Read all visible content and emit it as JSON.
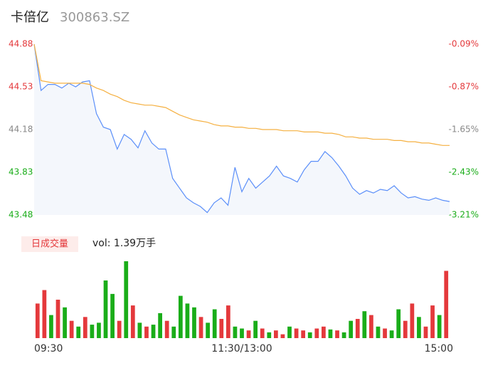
{
  "header": {
    "name": "卡倍亿",
    "code": "300863.SZ"
  },
  "chart_data": [
    {
      "type": "line",
      "grid": false,
      "x": [
        0,
        4,
        8,
        12,
        16,
        20,
        24,
        28,
        32,
        36,
        40,
        44,
        48,
        52,
        56,
        60,
        64,
        68,
        72,
        76,
        80,
        84,
        88,
        92,
        96,
        100,
        104,
        108,
        112,
        116,
        120,
        124,
        128,
        132,
        136,
        140,
        144,
        148,
        152,
        156,
        160,
        164,
        168,
        172,
        176,
        180,
        184,
        188,
        192,
        196,
        200,
        204,
        208,
        212,
        216,
        220,
        224,
        228,
        232,
        236,
        240
      ],
      "xlim": [
        0,
        240
      ],
      "ylim": [
        43.48,
        44.88
      ],
      "yticks": [
        43.48,
        43.83,
        44.18,
        44.53,
        44.88
      ],
      "y2lim": [
        -3.21,
        -0.09
      ],
      "y2ticks": [
        {
          "value": -3.21,
          "label": "-3.21%"
        },
        {
          "value": -2.43,
          "label": "-2.43%"
        },
        {
          "value": -1.65,
          "label": "-1.65%"
        },
        {
          "value": -0.87,
          "label": "-0.87%"
        },
        {
          "value": -0.09,
          "label": "-0.09%"
        }
      ],
      "tick_colors": [
        "#1aad19",
        "#1aad19",
        "#888888",
        "#e4393c",
        "#e4393c"
      ],
      "series": [
        {
          "color": "#5b8ff9",
          "values": [
            44.88,
            44.5,
            44.55,
            44.55,
            44.52,
            44.56,
            44.53,
            44.57,
            44.58,
            44.31,
            44.2,
            44.18,
            44.02,
            44.14,
            44.1,
            44.03,
            44.17,
            44.07,
            44.02,
            44.02,
            43.78,
            43.7,
            43.62,
            43.58,
            43.55,
            43.5,
            43.58,
            43.62,
            43.56,
            43.87,
            43.67,
            43.78,
            43.7,
            43.75,
            43.8,
            43.88,
            43.8,
            43.78,
            43.75,
            43.85,
            43.92,
            43.92,
            44.0,
            43.95,
            43.88,
            43.8,
            43.7,
            43.65,
            43.68,
            43.66,
            43.69,
            43.68,
            43.72,
            43.66,
            43.62,
            43.63,
            43.61,
            43.6,
            43.62,
            43.6,
            43.59
          ]
        },
        {
          "color": "#f5b041",
          "values": [
            44.88,
            44.58,
            44.57,
            44.56,
            44.56,
            44.56,
            44.56,
            44.56,
            44.55,
            44.52,
            44.5,
            44.47,
            44.45,
            44.42,
            44.4,
            44.39,
            44.38,
            44.38,
            44.37,
            44.36,
            44.33,
            44.3,
            44.28,
            44.26,
            44.25,
            44.24,
            44.22,
            44.21,
            44.21,
            44.2,
            44.2,
            44.19,
            44.19,
            44.18,
            44.18,
            44.18,
            44.17,
            44.17,
            44.17,
            44.16,
            44.16,
            44.16,
            44.15,
            44.15,
            44.14,
            44.12,
            44.12,
            44.11,
            44.11,
            44.1,
            44.1,
            44.1,
            44.09,
            44.09,
            44.08,
            44.08,
            44.07,
            44.07,
            44.06,
            44.05,
            44.05
          ]
        }
      ]
    },
    {
      "type": "volume",
      "label": "日成交量",
      "summary": "vol: 1.39万手",
      "xlim": [
        0,
        240
      ],
      "ylim": [
        0,
        400
      ],
      "xticks": [
        {
          "value": 0,
          "label": "09:30"
        },
        {
          "value": 120,
          "label": "11:30/13:00"
        },
        {
          "value": 240,
          "label": "15:00"
        }
      ],
      "values": [
        180,
        250,
        120,
        200,
        160,
        90,
        60,
        110,
        70,
        80,
        300,
        230,
        90,
        400,
        170,
        80,
        60,
        70,
        130,
        90,
        60,
        220,
        180,
        160,
        110,
        80,
        150,
        100,
        170,
        60,
        50,
        40,
        90,
        50,
        30,
        40,
        20,
        60,
        50,
        40,
        30,
        50,
        60,
        45,
        40,
        30,
        90,
        100,
        140,
        120,
        60,
        50,
        40,
        150,
        90,
        180,
        110,
        60,
        170,
        120,
        350
      ],
      "colors": [
        "#e4393c",
        "#e4393c",
        "#1aad19",
        "#e4393c",
        "#1aad19",
        "#e4393c",
        "#1aad19",
        "#e4393c",
        "#1aad19",
        "#1aad19",
        "#1aad19",
        "#1aad19",
        "#e4393c",
        "#1aad19",
        "#e4393c",
        "#1aad19",
        "#e4393c",
        "#1aad19",
        "#1aad19",
        "#e4393c",
        "#1aad19",
        "#1aad19",
        "#1aad19",
        "#1aad19",
        "#e4393c",
        "#1aad19",
        "#1aad19",
        "#e4393c",
        "#e4393c",
        "#1aad19",
        "#1aad19",
        "#e4393c",
        "#1aad19",
        "#e4393c",
        "#1aad19",
        "#e4393c",
        "#e4393c",
        "#1aad19",
        "#e4393c",
        "#e4393c",
        "#1aad19",
        "#e4393c",
        "#e4393c",
        "#1aad19",
        "#e4393c",
        "#1aad19",
        "#1aad19",
        "#e4393c",
        "#1aad19",
        "#e4393c",
        "#1aad19",
        "#e4393c",
        "#1aad19",
        "#1aad19",
        "#e4393c",
        "#e4393c",
        "#1aad19",
        "#e4393c",
        "#e4393c",
        "#1aad19",
        "#e4393c"
      ]
    }
  ]
}
